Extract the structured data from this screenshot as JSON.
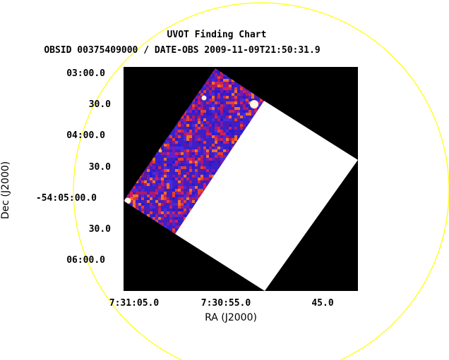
{
  "chart_data": {
    "type": "image",
    "title": "UVOT Finding Chart",
    "subtitle": "OBSID 00375409000 / DATE-OBS 2009-11-09T21:50:31.9",
    "xlabel": "RA (J2000)",
    "ylabel": "Dec (J2000)",
    "x_ticks": [
      "7:31:05.0",
      "7:30:55.0",
      "45.0"
    ],
    "y_ticks": [
      "03:00.0",
      "30.0",
      "04:00.0",
      "30.0",
      "-54:05:00.0",
      "30.0",
      "06:00.0"
    ],
    "colors": {
      "background": "#000000",
      "unexposed": "#ffffff",
      "circle": "#ffff00",
      "noise": [
        "#2a1ad0",
        "#4a2adf",
        "#7a1ab0",
        "#b0186a",
        "#d0205a",
        "#e8402a",
        "#f07028",
        "#5a18a0"
      ]
    },
    "sources": "bright point sources near field edges"
  }
}
